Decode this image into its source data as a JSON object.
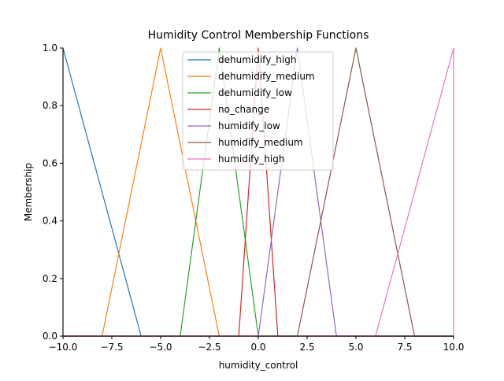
{
  "chart_data": {
    "type": "line",
    "title": "Humidity Control Membership Functions",
    "xlabel": "humidity_control",
    "ylabel": "Membership",
    "xlim": [
      -10,
      10
    ],
    "ylim": [
      0,
      1
    ],
    "x_ticks": [
      -10,
      -7.5,
      -5,
      -2.5,
      0,
      2.5,
      5,
      7.5,
      10
    ],
    "x_tick_labels": [
      "−10.0",
      "−7.5",
      "−5.0",
      "−2.5",
      "0.0",
      "2.5",
      "5.0",
      "7.5",
      "10.0"
    ],
    "y_ticks": [
      0,
      0.2,
      0.4,
      0.6,
      0.8,
      1.0
    ],
    "y_tick_labels": [
      "0.0",
      "0.2",
      "0.4",
      "0.6",
      "0.8",
      "1.0"
    ],
    "grid": false,
    "legend_position": "top-center",
    "series": [
      {
        "name": "dehumidify_high",
        "color": "#1f77b4",
        "x": [
          -10,
          -10,
          -6,
          10
        ],
        "y": [
          0,
          1,
          0,
          0
        ]
      },
      {
        "name": "dehumidify_medium",
        "color": "#ff7f0e",
        "x": [
          -10,
          -8,
          -5,
          -2,
          10
        ],
        "y": [
          0,
          0,
          1,
          0,
          0
        ]
      },
      {
        "name": "dehumidify_low",
        "color": "#2ca02c",
        "x": [
          -10,
          -4,
          -2,
          0,
          10
        ],
        "y": [
          0,
          0,
          1,
          0,
          0
        ]
      },
      {
        "name": "no_change",
        "color": "#d62728",
        "x": [
          -10,
          -1,
          0,
          1,
          10
        ],
        "y": [
          0,
          0,
          1,
          0,
          0
        ]
      },
      {
        "name": "humidify_low",
        "color": "#9467bd",
        "x": [
          -10,
          0,
          2,
          4,
          10
        ],
        "y": [
          0,
          0,
          1,
          0,
          0
        ]
      },
      {
        "name": "humidify_medium",
        "color": "#8c564b",
        "x": [
          -10,
          2,
          5,
          8,
          10
        ],
        "y": [
          0,
          0,
          1,
          0,
          0
        ]
      },
      {
        "name": "humidify_high",
        "color": "#e377c2",
        "x": [
          -10,
          6,
          10,
          10
        ],
        "y": [
          0,
          0,
          1,
          0
        ]
      }
    ]
  }
}
